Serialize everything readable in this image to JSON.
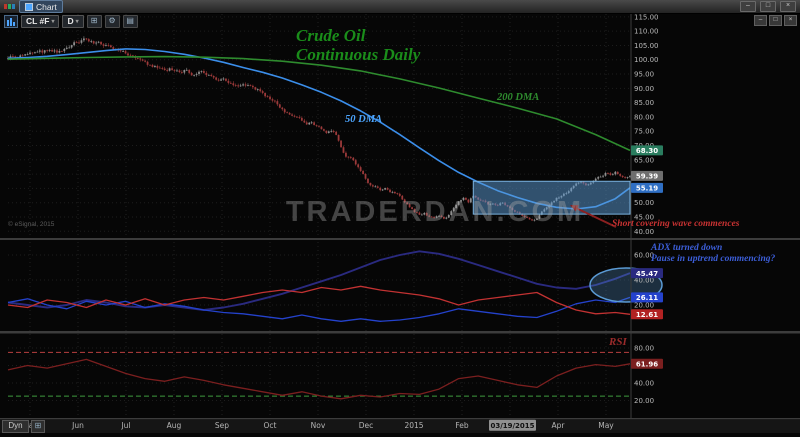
{
  "titlebar": {
    "tab_label": "Chart"
  },
  "toolbar": {
    "symbol": "CL #F",
    "interval": "D"
  },
  "footer": {
    "dyn_label": "Dyn"
  },
  "watermark": "TRADERDAN.COM",
  "copyright": "© eSignal, 2015",
  "annotations": {
    "title_line1": "Crude Oil",
    "title_line2": "Continuous Daily",
    "ma200_label": "200 DMA",
    "ma50_label": "50 DMA",
    "short_covering": "Short covering wave commences",
    "adx_note_line1": "ADX turned down",
    "adx_note_line2": "Pause in uptrend commencing?",
    "rsi_label": "RSI"
  },
  "x_axis": {
    "months": [
      "May",
      "Jun",
      "Jul",
      "Aug",
      "Sep",
      "Oct",
      "Nov",
      "Dec",
      "2015",
      "Feb",
      "Mar",
      "Apr",
      "May"
    ],
    "marker_date": "03/19/2015"
  },
  "chart_data": [
    {
      "type": "candlestick",
      "panel": "price",
      "title": "Crude Oil Continuous Daily",
      "ylim": [
        38,
        116
      ],
      "yticks": [
        115,
        110,
        105,
        100,
        95,
        90,
        85,
        80,
        75,
        70,
        65,
        60,
        55,
        50,
        45,
        40
      ],
      "closes": [
        100.5,
        101.2,
        100.8,
        101.5,
        102.0,
        102.3,
        102.8,
        102.5,
        103.1,
        102.9,
        102.5,
        103.0,
        104.2,
        105.1,
        106.0,
        106.8,
        107.2,
        106.5,
        106.0,
        105.4,
        105.1,
        104.4,
        103.8,
        103.0,
        102.2,
        101.5,
        100.6,
        100.1,
        99.3,
        98.2,
        97.8,
        97.1,
        96.4,
        97.0,
        96.2,
        95.7,
        96.4,
        95.4,
        94.7,
        95.8,
        95.4,
        94.7,
        93.8,
        92.7,
        93.4,
        91.9,
        91.1,
        90.7,
        91.4,
        91.1,
        90.4,
        89.7,
        88.4,
        87.1,
        85.7,
        84.4,
        82.7,
        81.4,
        80.4,
        79.9,
        78.7,
        77.4,
        78.1,
        76.9,
        75.7,
        74.4,
        75.1,
        73.7,
        69.4,
        66.1,
        65.7,
        63.4,
        61.1,
        58.4,
        56.1,
        55.7,
        54.4,
        55.1,
        53.7,
        53.3,
        52.4,
        50.1,
        48.4,
        46.7,
        45.8,
        46.4,
        45.1,
        44.7,
        45.4,
        44.4,
        45.7,
        48.1,
        50.4,
        51.7,
        50.1,
        52.4,
        51.1,
        50.7,
        49.4,
        49.7,
        49.1,
        50.0,
        48.7,
        47.4,
        46.7,
        45.4,
        44.7,
        43.8,
        44.4,
        46.9,
        48.4,
        50.1,
        51.7,
        52.4,
        53.4,
        55.1,
        56.7,
        57.4,
        56.1,
        57.0,
        58.4,
        59.1,
        60.4,
        59.7,
        60.8,
        59.4,
        58.7,
        59.4
      ],
      "overlays": [
        {
          "name": "50 DMA",
          "color": "#3b8eea",
          "sample_step": 4,
          "values": [
            100.5,
            100.8,
            101.2,
            101.8,
            102.5,
            103.2,
            103.8,
            103.6,
            102.9,
            101.9,
            100.6,
            99.1,
            97.3,
            95.6,
            93.6,
            91.2,
            88.6,
            85.6,
            82.1,
            78.2,
            73.8,
            69.2,
            64.7,
            60.6,
            57.2,
            54.2,
            51.8,
            49.8,
            48.4,
            47.8,
            48.6,
            51.4,
            55.2
          ]
        },
        {
          "name": "200 DMA",
          "color": "#2e8b2e",
          "sample_step": 8,
          "values": [
            100.2,
            100.5,
            100.8,
            101.0,
            101.1,
            100.9,
            100.4,
            99.5,
            98.1,
            96.1,
            93.3,
            90.1,
            86.6,
            83.1,
            79.3,
            73.8,
            68.3
          ]
        }
      ],
      "consolidation_box": {
        "from_index": 95,
        "to_index": 127,
        "price_top": 57.5,
        "price_bottom": 46.0
      },
      "axis_markers": [
        {
          "value": "68.30",
          "color": "#2a7d5f"
        },
        {
          "value": "59.39",
          "color": "#6e6e6e"
        },
        {
          "value": "55.19",
          "color": "#2f6fc4"
        }
      ]
    },
    {
      "type": "line",
      "panel": "adx_dmi",
      "ylim": [
        0,
        72
      ],
      "yticks": [
        60,
        40,
        20
      ],
      "sample_step": 4,
      "series": [
        {
          "name": "ADX",
          "color": "#2a2a80",
          "values": [
            22,
            20,
            18,
            20,
            24,
            22,
            19,
            18,
            20,
            18,
            16,
            18,
            21,
            25,
            29,
            34,
            39,
            44,
            50,
            56,
            60,
            63,
            61,
            57,
            52,
            47,
            42,
            37,
            34,
            33,
            36,
            41,
            45.5
          ]
        },
        {
          "name": "+DI",
          "color": "#2442cc",
          "values": [
            22,
            25,
            20,
            17,
            23,
            20,
            23,
            18,
            21,
            19,
            16,
            14,
            13,
            11,
            9,
            12,
            9,
            7,
            9,
            7,
            8,
            10,
            13,
            17,
            15,
            13,
            11,
            10,
            15,
            21,
            24,
            22,
            26.1
          ]
        },
        {
          "name": "-DI",
          "color": "#c23232",
          "values": [
            20,
            18,
            24,
            22,
            18,
            24,
            20,
            25,
            20,
            24,
            26,
            24,
            27,
            30,
            32,
            30,
            34,
            32,
            35,
            32,
            30,
            28,
            25,
            20,
            24,
            26,
            28,
            30,
            22,
            16,
            13,
            14,
            12.6
          ]
        }
      ],
      "axis_markers": [
        {
          "value": "45.47",
          "color": "#2a2a80"
        },
        {
          "value": "26.11",
          "color": "#2442cc"
        },
        {
          "value": "12.61",
          "color": "#b22222"
        }
      ]
    },
    {
      "type": "line",
      "panel": "rsi",
      "ylim": [
        0,
        96
      ],
      "yticks": [
        80,
        60,
        40,
        20
      ],
      "overbought_level": 75,
      "oversold_level": 25,
      "sample_step": 4,
      "series": [
        {
          "name": "RSI",
          "color": "#7b1f1f",
          "values": [
            55,
            60,
            57,
            62,
            67,
            59,
            51,
            45,
            42,
            47,
            43,
            38,
            34,
            30,
            26,
            30,
            25,
            22,
            26,
            24,
            28,
            27,
            33,
            45,
            48,
            43,
            38,
            35,
            48,
            57,
            61,
            59,
            61.96
          ]
        }
      ],
      "axis_markers": [
        {
          "value": "61.96",
          "color": "#7b1f1f"
        }
      ]
    }
  ]
}
